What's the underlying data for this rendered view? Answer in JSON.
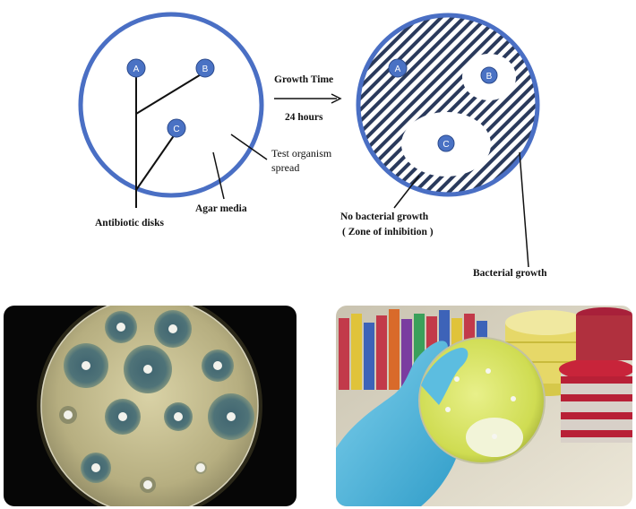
{
  "diagram": {
    "left_plate": {
      "disks": [
        {
          "letter": "A"
        },
        {
          "letter": "B"
        },
        {
          "letter": "C"
        }
      ]
    },
    "right_plate": {
      "disks": [
        {
          "letter": "A"
        },
        {
          "letter": "B"
        },
        {
          "letter": "C"
        }
      ]
    },
    "arrow_label_top": "Growth Time",
    "arrow_label_bottom": "24 hours",
    "labels": {
      "test_organism_line1": "Test organism",
      "test_organism_line2": "spread",
      "agar_media": "Agar media",
      "antibiotic_disks": "Antibiotic disks",
      "no_growth_line1": "No bacterial growth",
      "no_growth_line2": "( Zone of inhibition )",
      "bacterial_growth": "Bacterial growth"
    },
    "colors": {
      "plate_rim": "#4a6fc4",
      "disk_fill": "#4a72c4",
      "hatch": "#2a3a5c"
    }
  },
  "photos": {
    "left": {
      "subject": "antibiotic-disk-plate-photo"
    },
    "right": {
      "subject": "gloved-hand-holding-petri-dish-photo"
    }
  }
}
